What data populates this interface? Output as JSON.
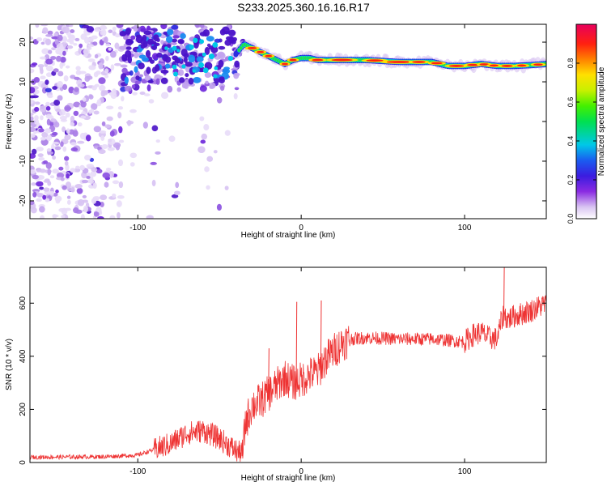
{
  "title": "S233.2025.360.16.16.R17",
  "chart_data": [
    {
      "type": "heatmap",
      "xlabel": "Height of straight line (km)",
      "ylabel": "Frequency (Hz)",
      "xlim": [
        -166,
        150
      ],
      "ylim": [
        -24.5,
        24.5
      ],
      "x_ticks": [
        -100,
        0,
        100
      ],
      "y_ticks": [
        -20,
        -10,
        0,
        10,
        20
      ],
      "colorbar": {
        "label": "Normalized spectral amplitude",
        "ticks": [
          0.0,
          0.2,
          0.4,
          0.6,
          0.8
        ],
        "range": [
          0,
          1
        ]
      },
      "ridge": {
        "description_points_x": [
          -40,
          -35,
          -30,
          -25,
          -20,
          -15,
          -10,
          -5,
          0,
          5,
          10,
          20,
          40,
          60,
          80,
          90,
          100,
          110,
          120,
          130,
          140,
          150
        ],
        "description_points_freq": [
          17,
          19.5,
          18.5,
          17.5,
          16.5,
          15.5,
          14.5,
          15.5,
          16,
          16,
          15.5,
          15.5,
          15.5,
          15,
          15,
          14,
          14,
          14.5,
          14,
          14,
          14.2,
          14.5
        ]
      },
      "noise_region": {
        "x_range": [
          -166,
          -38
        ],
        "freq_range": [
          -24.5,
          24.5
        ]
      }
    },
    {
      "type": "line",
      "xlabel": "Height of straight line (km)",
      "ylabel": "SNR (10 * v/v)",
      "xlim": [
        -166,
        150
      ],
      "ylim": [
        0,
        735
      ],
      "x_ticks": [
        -100,
        0,
        100
      ],
      "y_ticks": [
        0,
        200,
        400,
        600
      ],
      "color": "#ee3333",
      "trend_x": [
        -166,
        -120,
        -100,
        -80,
        -70,
        -60,
        -50,
        -40,
        -36,
        -34,
        -30,
        -25,
        -20,
        -15,
        -10,
        -5,
        0,
        5,
        10,
        15,
        20,
        25,
        30,
        40,
        60,
        80,
        100,
        103,
        105,
        110,
        115,
        120,
        122,
        124,
        126,
        130,
        140,
        150
      ],
      "trend_y": [
        20,
        22,
        28,
        70,
        110,
        120,
        90,
        45,
        30,
        150,
        215,
        230,
        260,
        290,
        320,
        300,
        310,
        330,
        340,
        390,
        420,
        450,
        465,
        470,
        465,
        465,
        455,
        470,
        480,
        490,
        470,
        465,
        520,
        560,
        540,
        550,
        570,
        600
      ],
      "spikes": [
        {
          "x": -20,
          "y": 430
        },
        {
          "x": -3,
          "y": 605
        },
        {
          "x": 12,
          "y": 610
        },
        {
          "x": 124,
          "y": 740
        }
      ]
    }
  ]
}
